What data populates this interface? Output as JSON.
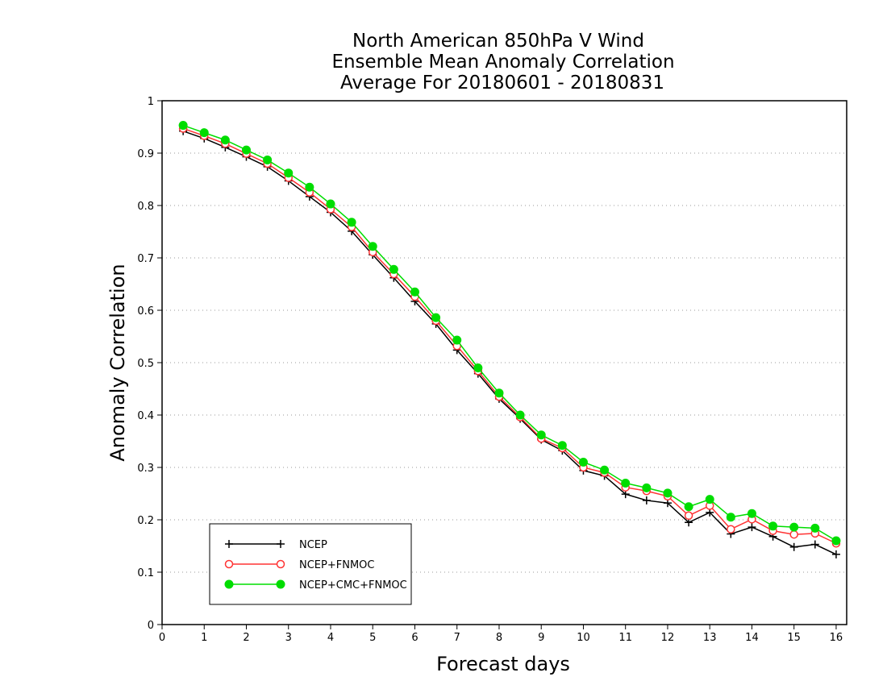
{
  "chart_data": {
    "type": "line",
    "title": [
      "North American 850hPa V Wind",
      "Ensemble Mean Anomaly Correlation",
      "Average For 20180601 - 20180831"
    ],
    "xlabel": "Forecast days",
    "ylabel": "Anomaly Correlation",
    "xlim": [
      0,
      16.25
    ],
    "ylim": [
      0,
      1
    ],
    "xticks": [
      0,
      1,
      2,
      3,
      4,
      5,
      6,
      7,
      8,
      9,
      10,
      11,
      12,
      13,
      14,
      15,
      16
    ],
    "yticks": [
      0,
      0.1,
      0.2,
      0.3,
      0.4,
      0.5,
      0.6,
      0.7,
      0.8,
      0.9,
      1
    ],
    "grid": "horizontal-dotted",
    "legend_position": "bottom-left",
    "x": [
      0.5,
      1,
      1.5,
      2,
      2.5,
      3,
      3.5,
      4,
      4.5,
      5,
      5.5,
      6,
      6.5,
      7,
      7.5,
      8,
      8.5,
      9,
      9.5,
      10,
      10.5,
      11,
      11.5,
      12,
      12.5,
      13,
      13.5,
      14,
      14.5,
      15,
      15.5,
      16
    ],
    "series": [
      {
        "name": "NCEP",
        "color": "#000000",
        "marker": "plus",
        "values": [
          0.942,
          0.928,
          0.911,
          0.893,
          0.874,
          0.847,
          0.817,
          0.787,
          0.751,
          0.706,
          0.662,
          0.617,
          0.574,
          0.524,
          0.479,
          0.431,
          0.393,
          0.353,
          0.332,
          0.294,
          0.284,
          0.249,
          0.237,
          0.232,
          0.195,
          0.214,
          0.173,
          0.186,
          0.168,
          0.148,
          0.153,
          0.134
        ]
      },
      {
        "name": "NCEP+FNMOC",
        "color": "#ff3333",
        "marker": "open-circle",
        "values": [
          0.947,
          0.933,
          0.918,
          0.899,
          0.88,
          0.853,
          0.825,
          0.793,
          0.759,
          0.711,
          0.669,
          0.626,
          0.58,
          0.532,
          0.484,
          0.435,
          0.396,
          0.355,
          0.337,
          0.3,
          0.29,
          0.262,
          0.255,
          0.245,
          0.208,
          0.227,
          0.182,
          0.201,
          0.179,
          0.172,
          0.174,
          0.155
        ]
      },
      {
        "name": "NCEP+CMC+FNMOC",
        "color": "#00dd00",
        "marker": "filled-circle",
        "values": [
          0.953,
          0.939,
          0.925,
          0.906,
          0.887,
          0.862,
          0.835,
          0.803,
          0.768,
          0.722,
          0.678,
          0.635,
          0.586,
          0.543,
          0.49,
          0.442,
          0.4,
          0.362,
          0.342,
          0.31,
          0.295,
          0.27,
          0.261,
          0.251,
          0.225,
          0.239,
          0.205,
          0.212,
          0.188,
          0.186,
          0.184,
          0.16
        ]
      }
    ]
  }
}
